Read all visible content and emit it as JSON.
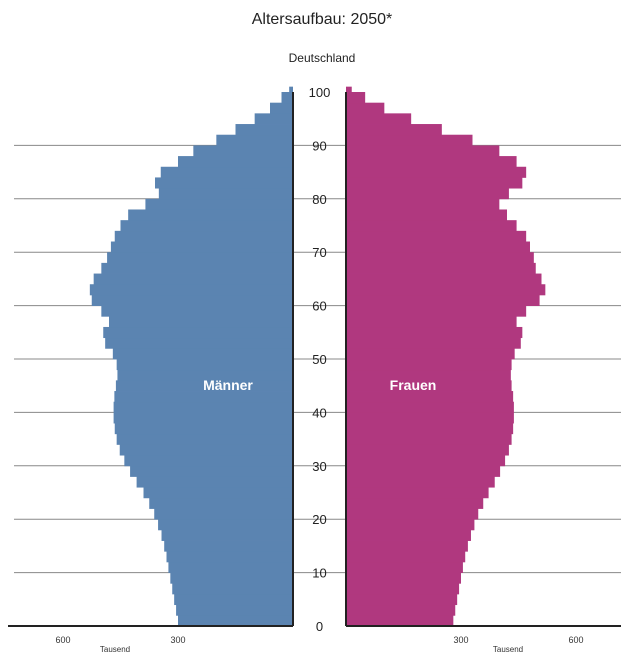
{
  "chart_data": {
    "type": "bar",
    "orientation": "horizontal-butterfly",
    "title": "Altersaufbau: 2050*",
    "subtitle": "Deutschland",
    "y_ticks": [
      0,
      10,
      20,
      30,
      40,
      50,
      60,
      70,
      80,
      90,
      100
    ],
    "ylim": [
      0,
      100
    ],
    "x_ticks_left": [
      "600",
      "300"
    ],
    "x_ticks_right": [
      "300",
      "600"
    ],
    "x_unit_left": "Tausend",
    "x_unit_right": "Tausend",
    "xlim": [
      0,
      700
    ],
    "colors": {
      "maenner": "#5b84b1",
      "frauen": "#b0387f"
    },
    "series": [
      {
        "name": "Männer",
        "ages": [
          0,
          2,
          4,
          6,
          8,
          10,
          12,
          14,
          16,
          18,
          20,
          22,
          24,
          26,
          28,
          30,
          32,
          34,
          36,
          38,
          40,
          42,
          44,
          46,
          48,
          50,
          52,
          54,
          56,
          58,
          60,
          62,
          64,
          66,
          68,
          70,
          72,
          74,
          76,
          78,
          80,
          82,
          84,
          86,
          88,
          90,
          92,
          94,
          96,
          98,
          100
        ],
        "values": [
          300,
          305,
          310,
          315,
          320,
          325,
          330,
          336,
          343,
          352,
          362,
          375,
          390,
          408,
          425,
          440,
          452,
          460,
          465,
          468,
          468,
          466,
          462,
          458,
          460,
          470,
          490,
          495,
          480,
          500,
          525,
          530,
          520,
          500,
          485,
          475,
          465,
          450,
          430,
          385,
          350,
          360,
          345,
          300,
          260,
          200,
          150,
          100,
          60,
          30,
          10
        ]
      },
      {
        "name": "Frauen",
        "ages": [
          0,
          2,
          4,
          6,
          8,
          10,
          12,
          14,
          16,
          18,
          20,
          22,
          24,
          26,
          28,
          30,
          32,
          34,
          36,
          38,
          40,
          42,
          44,
          46,
          48,
          50,
          52,
          54,
          56,
          58,
          60,
          62,
          64,
          66,
          68,
          70,
          72,
          74,
          76,
          78,
          80,
          82,
          84,
          86,
          88,
          90,
          92,
          94,
          96,
          98,
          100
        ],
        "values": [
          280,
          285,
          290,
          295,
          300,
          305,
          311,
          318,
          326,
          335,
          345,
          358,
          372,
          388,
          402,
          415,
          425,
          432,
          436,
          438,
          438,
          436,
          432,
          430,
          432,
          440,
          456,
          460,
          445,
          470,
          505,
          520,
          510,
          495,
          490,
          480,
          470,
          445,
          420,
          400,
          425,
          460,
          470,
          445,
          400,
          330,
          250,
          170,
          100,
          50,
          15
        ]
      }
    ]
  }
}
